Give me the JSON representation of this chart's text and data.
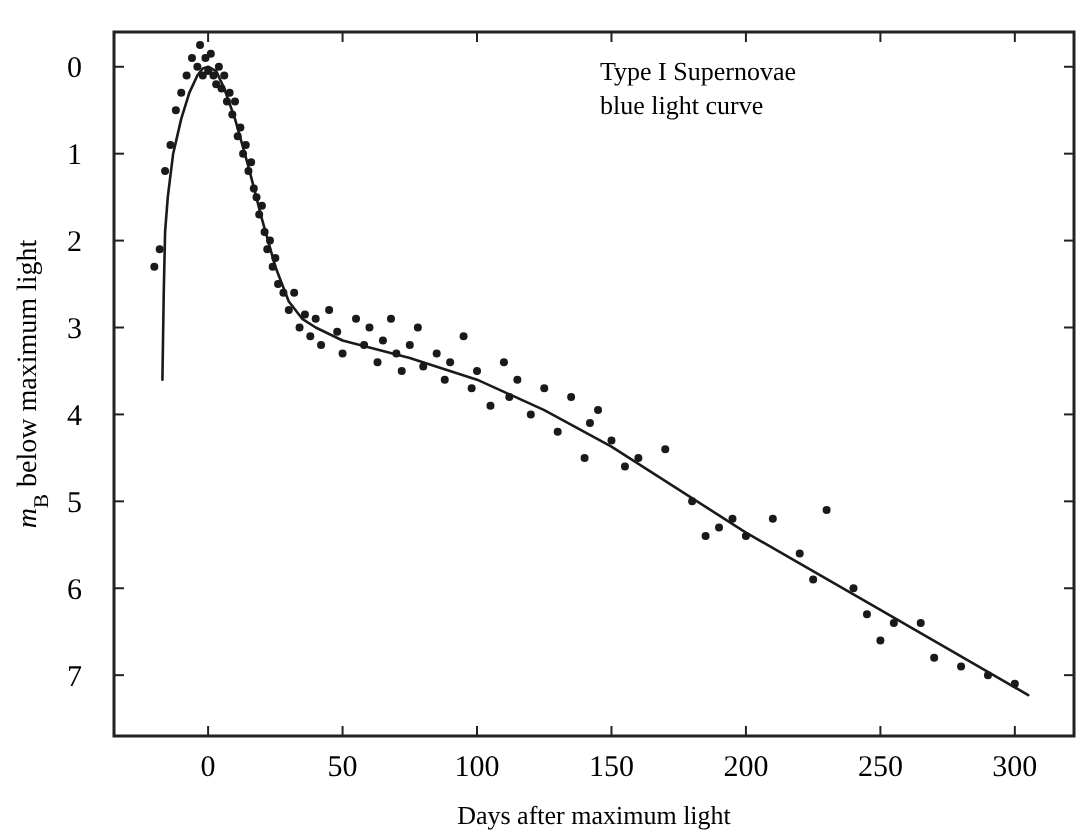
{
  "chart_data": {
    "type": "scatter",
    "xlabel": "Days after maximum light",
    "ylabel": "m$_{B}$ below maximum light",
    "annotations": [
      "Type I Supernovae\nblue light curve"
    ],
    "xlim": [
      -35,
      322
    ],
    "ylim": [
      7.7,
      -0.4
    ],
    "xticks": [
      0,
      50,
      100,
      150,
      200,
      250,
      300
    ],
    "yticks": [
      0,
      1,
      2,
      3,
      4,
      5,
      6,
      7
    ],
    "grid": false,
    "series": [
      {
        "type": "scatter",
        "color": "#1a1a1a",
        "marker": "circle",
        "x": [
          -18,
          -20,
          -16,
          -14,
          -12,
          -10,
          -8,
          -6,
          -4,
          -3,
          -2,
          -1,
          0,
          1,
          2,
          3,
          4,
          5,
          6,
          7,
          8,
          9,
          10,
          11,
          12,
          13,
          14,
          15,
          16,
          17,
          18,
          19,
          20,
          21,
          22,
          23,
          24,
          25,
          26,
          28,
          30,
          32,
          34,
          36,
          38,
          40,
          42,
          45,
          48,
          50,
          55,
          58,
          60,
          63,
          65,
          68,
          70,
          72,
          75,
          78,
          80,
          85,
          88,
          90,
          95,
          98,
          100,
          105,
          110,
          112,
          115,
          120,
          125,
          130,
          135,
          140,
          142,
          145,
          150,
          155,
          160,
          170,
          180,
          185,
          190,
          195,
          200,
          210,
          220,
          225,
          230,
          240,
          245,
          250,
          255,
          265,
          270,
          280,
          290,
          300
        ],
        "values": [
          2.1,
          2.3,
          1.2,
          0.9,
          0.5,
          0.3,
          0.1,
          -0.1,
          0.0,
          -0.25,
          0.1,
          -0.1,
          0.05,
          -0.15,
          0.1,
          0.2,
          0.0,
          0.25,
          0.1,
          0.4,
          0.3,
          0.55,
          0.4,
          0.8,
          0.7,
          1.0,
          0.9,
          1.2,
          1.1,
          1.4,
          1.5,
          1.7,
          1.6,
          1.9,
          2.1,
          2.0,
          2.3,
          2.2,
          2.5,
          2.6,
          2.8,
          2.6,
          3.0,
          2.85,
          3.1,
          2.9,
          3.2,
          2.8,
          3.05,
          3.3,
          2.9,
          3.2,
          3.0,
          3.4,
          3.15,
          2.9,
          3.3,
          3.5,
          3.2,
          3.0,
          3.45,
          3.3,
          3.6,
          3.4,
          3.1,
          3.7,
          3.5,
          3.9,
          3.4,
          3.8,
          3.6,
          4.0,
          3.7,
          4.2,
          3.8,
          4.5,
          4.1,
          3.95,
          4.3,
          4.6,
          4.5,
          4.4,
          5.0,
          5.4,
          5.3,
          5.2,
          5.4,
          5.2,
          5.6,
          5.9,
          5.1,
          6.0,
          6.3,
          6.6,
          6.4,
          6.4,
          6.8,
          6.9,
          7.0,
          7.1
        ]
      },
      {
        "type": "line",
        "color": "#1a1a1a",
        "line_style": "solid",
        "x": [
          -17,
          -16.5,
          -16,
          -15,
          -13,
          -10,
          -7,
          -4,
          -2,
          0,
          3,
          6,
          10,
          15,
          20,
          25,
          30,
          35,
          40,
          50,
          75,
          100,
          125,
          150,
          200,
          250,
          305
        ],
        "values": [
          3.6,
          2.6,
          1.9,
          1.5,
          1.0,
          0.6,
          0.3,
          0.1,
          0.02,
          0,
          0.05,
          0.25,
          0.6,
          1.15,
          1.75,
          2.3,
          2.7,
          2.9,
          3.0,
          3.15,
          3.35,
          3.6,
          3.95,
          4.37,
          5.36,
          6.25,
          7.23
        ]
      }
    ]
  }
}
